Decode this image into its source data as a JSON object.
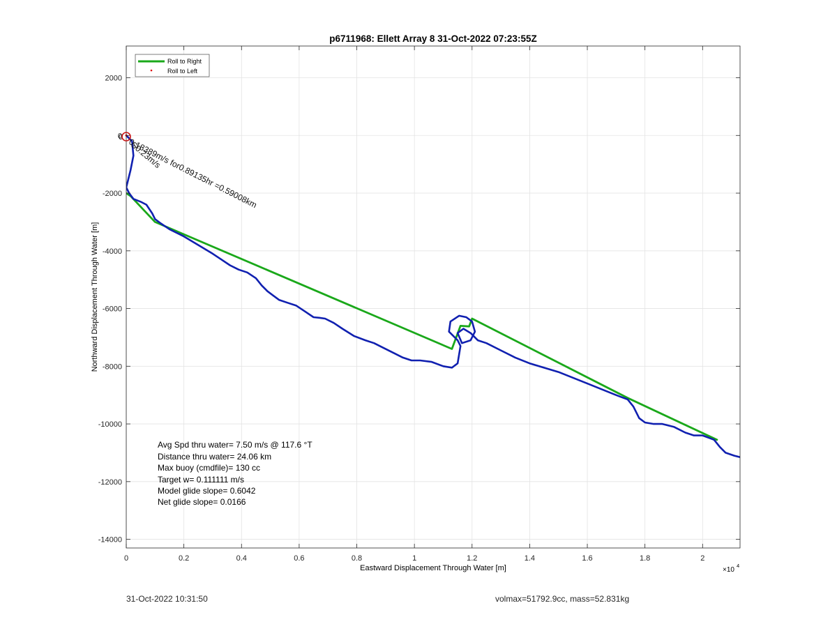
{
  "chart_data": {
    "type": "line",
    "title": "p6711968: Ellett Array 8 31-Oct-2022 07:23:55Z",
    "xlabel": "Eastward Displacement Through Water [m]",
    "ylabel": "Northward Displacement Through Water [m]",
    "x_exponent_label": "×10",
    "x_exponent_power": "4",
    "xlim": [
      0,
      21300
    ],
    "ylim": [
      -14300,
      3100
    ],
    "xticks": [
      0,
      2000,
      4000,
      6000,
      8000,
      10000,
      12000,
      14000,
      16000,
      18000,
      20000
    ],
    "xtick_labels": [
      "0",
      "0.2",
      "0.4",
      "0.6",
      "0.8",
      "1",
      "1.2",
      "1.4",
      "1.6",
      "1.8",
      "2"
    ],
    "yticks": [
      2000,
      0,
      -2000,
      -4000,
      -6000,
      -8000,
      -10000,
      -12000,
      -14000
    ],
    "ytick_labels": [
      "2000",
      "0",
      "-2000",
      "-4000",
      "-6000",
      "-8000",
      "-10000",
      "-12000",
      "-14000"
    ],
    "grid": true,
    "legend_position": "top-left",
    "series": [
      {
        "name": "Roll to Right",
        "color": "#1aa81a",
        "style": "line",
        "x": [
          0,
          150,
          1000,
          11300,
          11600,
          11900,
          12000,
          17400,
          20500
        ],
        "y": [
          -2000,
          -2100,
          -3000,
          -7400,
          -6600,
          -6620,
          -6350,
          -9100,
          -10550
        ]
      },
      {
        "name": "Roll to Left",
        "color": "#e00000",
        "style": "dot",
        "x": [
          0
        ],
        "y": [
          0
        ]
      },
      {
        "name": "",
        "color": "#1020b0",
        "style": "line",
        "x": [
          0,
          200,
          250,
          150,
          50,
          0,
          100,
          250,
          500,
          700,
          900,
          1000,
          1200,
          1500,
          2000,
          2500,
          3000,
          3300,
          3600,
          3900,
          4200,
          4500,
          4700,
          4900,
          5100,
          5300,
          5600,
          5900,
          6200,
          6500,
          6700,
          6900,
          7200,
          7500,
          7900,
          8300,
          8600,
          8900,
          9300,
          9600,
          9900,
          10200,
          10600,
          11000,
          11300,
          11500,
          11600,
          11500,
          11200,
          11250,
          11550,
          11800,
          12000,
          12100,
          11950,
          11650,
          11500,
          11700,
          11950,
          12200,
          12500,
          13000,
          13500,
          14000,
          15000,
          16000,
          17000,
          17400,
          17600,
          17800,
          18000,
          18300,
          18600,
          19000,
          19400,
          19700,
          20000,
          20400,
          20600,
          20800,
          21100,
          21300
        ],
        "y": [
          0,
          -200,
          -700,
          -1200,
          -1600,
          -1800,
          -2000,
          -2200,
          -2300,
          -2400,
          -2700,
          -2900,
          -3050,
          -3250,
          -3500,
          -3800,
          -4100,
          -4300,
          -4500,
          -4650,
          -4750,
          -4950,
          -5200,
          -5400,
          -5550,
          -5700,
          -5800,
          -5900,
          -6100,
          -6300,
          -6320,
          -6350,
          -6500,
          -6700,
          -6950,
          -7100,
          -7200,
          -7350,
          -7550,
          -7700,
          -7800,
          -7800,
          -7850,
          -8000,
          -8050,
          -7900,
          -7300,
          -7100,
          -6800,
          -6450,
          -6250,
          -6300,
          -6450,
          -6800,
          -7100,
          -7200,
          -6850,
          -6700,
          -6850,
          -7100,
          -7200,
          -7450,
          -7700,
          -7900,
          -8200,
          -8600,
          -9000,
          -9150,
          -9400,
          -9800,
          -9950,
          -10000,
          -10000,
          -10100,
          -10300,
          -10400,
          -10400,
          -10550,
          -10800,
          -11000,
          -11100,
          -11150
        ]
      }
    ],
    "start_marker": {
      "label": "0",
      "x": 0,
      "y": 0
    },
    "annotations": {
      "track_label": "0.18389m/s for0.89135hr =0.59008km",
      "overlap_label": "S0.23m/s"
    },
    "stats": [
      "Avg Spd thru water=  7.50 m/s @ 117.6 °T",
      "Distance thru water= 24.06 km",
      "Max buoy (cmdfile)= 130 cc",
      "Target w= 0.111111 m/s",
      "Model glide slope= 0.6042",
      "Net glide slope= 0.0166"
    ]
  },
  "footer": {
    "timestamp": "31-Oct-2022 10:31:50",
    "summary": "volmax=51792.9cc, mass=52.831kg"
  }
}
